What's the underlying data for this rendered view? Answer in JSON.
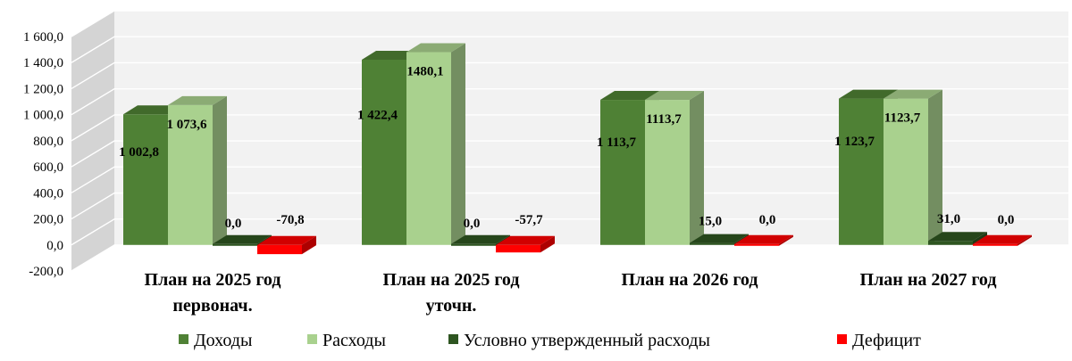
{
  "chart_data": {
    "type": "bar",
    "title": "",
    "xlabel": "",
    "ylabel": "",
    "ylim": [
      -200,
      1600
    ],
    "ytick_labels": [
      "-200,0",
      "0,0",
      "200,0",
      "400,0",
      "600,0",
      "800,0",
      "1 000,0",
      "1 200,0",
      "1 400,0",
      "1 600,0"
    ],
    "grid": true,
    "legend": "bottom",
    "categories": [
      [
        "План на  2025 год",
        "первонач."
      ],
      [
        "План на  2025 год",
        "уточн."
      ],
      [
        "План на 2026 год"
      ],
      [
        "План на 2027 год"
      ]
    ],
    "series": [
      {
        "name": "Доходы",
        "color": "#4f8135",
        "values": [
          1002.8,
          1422.4,
          1113.7,
          1123.7
        ],
        "labels": [
          "1 002,8",
          "1 422,4",
          "1 113,7",
          "1 123,7"
        ]
      },
      {
        "name": "Расходы",
        "color": "#a9d18e",
        "values": [
          1073.6,
          1480.1,
          1113.7,
          1123.7
        ],
        "labels": [
          "1 073,6",
          "1480,1",
          "1113,7",
          "1123,7"
        ]
      },
      {
        "name": "Условно утвержденный расходы",
        "color": "#2e5521",
        "values": [
          0.0,
          0.0,
          15.0,
          31.0
        ],
        "labels": [
          "0,0",
          "0,0",
          "15,0",
          "31,0"
        ]
      },
      {
        "name": "Дефицит",
        "color": "#ff0000",
        "values": [
          -70.8,
          -57.7,
          0.0,
          0.0
        ],
        "labels": [
          "-70,8",
          "-57,7",
          "0,0",
          "0,0"
        ]
      }
    ]
  }
}
